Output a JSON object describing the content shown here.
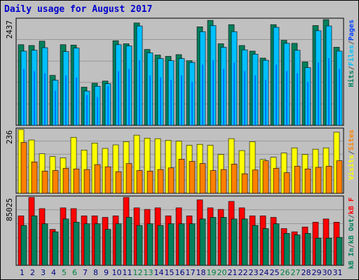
{
  "title": "Daily usage for August 2017",
  "colors": {
    "hits": "#00805c",
    "files": "#00c0ff",
    "pages": "#0040ff",
    "visits": "#ffff00",
    "sites": "#ff8000",
    "kb_in": "#00805c",
    "kb_out": "#00805c",
    "kb_f": "#ff0000",
    "weekend_label": "#008040",
    "weekday_label": "#000080",
    "panel_bg": "#c0c0c0",
    "grid": "#808080"
  },
  "chart_data": {
    "type": "bar",
    "categories": [
      "1",
      "2",
      "3",
      "4",
      "5",
      "6",
      "7",
      "8",
      "9",
      "10",
      "11",
      "12",
      "13",
      "14",
      "15",
      "16",
      "17",
      "18",
      "19",
      "20",
      "21",
      "22",
      "23",
      "24",
      "25",
      "26",
      "27",
      "28",
      "29",
      "30",
      "31"
    ],
    "weekend_days": [
      "5",
      "6",
      "12",
      "13",
      "19",
      "20",
      "26",
      "27"
    ],
    "panels": [
      {
        "name": "requests",
        "axis_max_label": "2437",
        "ylim": [
          0,
          2437
        ],
        "legend": [
          "Pages",
          "/",
          "Files",
          "/",
          "Hits"
        ],
        "series": [
          {
            "name": "Hits",
            "values": [
              1860,
              1840,
              1940,
              1150,
              1860,
              1850,
              880,
              970,
              1020,
              1950,
              1880,
              2360,
              1750,
              1620,
              1590,
              1630,
              1490,
              2270,
              2420,
              1880,
              2320,
              1840,
              1710,
              1550,
              2320,
              1960,
              1890,
              1460,
              2300,
              2437,
              1800
            ]
          },
          {
            "name": "Files",
            "values": [
              1710,
              1730,
              1790,
              1040,
              1700,
              1780,
              790,
              900,
              960,
              1860,
              1830,
              2290,
              1670,
              1540,
              1490,
              1540,
              1450,
              2160,
              2300,
              1800,
              2160,
              1740,
              1640,
              1500,
              2260,
              1890,
              1730,
              1330,
              2180,
              2290,
              1710
            ]
          },
          {
            "name": "Pages",
            "values": [
              1300,
              1250,
              1200,
              800,
              1150,
              1100,
              700,
              650,
              900,
              1250,
              1300,
              1500,
              1150,
              1100,
              1050,
              1150,
              1000,
              1400,
              1500,
              1300,
              1450,
              1250,
              1150,
              1050,
              1400,
              1250,
              1200,
              1000,
              1450,
              1550,
              1300
            ]
          }
        ]
      },
      {
        "name": "visits_sites",
        "axis_max_label": "236",
        "ylim": [
          0,
          236
        ],
        "legend": [
          "Sites",
          "/",
          "Visits"
        ],
        "series": [
          {
            "name": "Visits",
            "values": [
              236,
              197,
              146,
              136,
              131,
              207,
              160,
              186,
              166,
              179,
              191,
              215,
              204,
              202,
              196,
              193,
              178,
              181,
              178,
              144,
              202,
              158,
              191,
              125,
              133,
              149,
              168,
              144,
              163,
              168,
              226
            ]
          },
          {
            "name": "Sites",
            "values": [
              188,
              116,
              82,
              84,
              92,
              90,
              88,
              106,
              98,
              80,
              110,
              84,
              82,
              88,
              94,
              126,
              118,
              110,
              84,
              88,
              108,
              72,
              86,
              120,
              92,
              76,
              100,
              90,
              96,
              100,
              120
            ]
          }
        ]
      },
      {
        "name": "kbytes",
        "axis_max_label": "85025",
        "ylim": [
          0,
          85025
        ],
        "legend": [
          "kB F",
          "/",
          "kB Out",
          "/",
          "kB In"
        ],
        "series": [
          {
            "name": "kB F",
            "values": [
              62000,
              85025,
              71000,
              45000,
              72000,
              71000,
              62000,
              62000,
              60000,
              62000,
              85025,
              72000,
              70000,
              72000,
              62000,
              72000,
              62000,
              82000,
              72000,
              70000,
              80000,
              72000,
              62000,
              62000,
              60000,
              46000,
              42000,
              48000,
              54000,
              58000,
              54000
            ]
          },
          {
            "name": "kB Out",
            "values": [
              50000,
              62000,
              52000,
              42000,
              58000,
              54000,
              52000,
              52000,
              45000,
              52000,
              60000,
              50000,
              52000,
              50000,
              52000,
              52000,
              52000,
              58000,
              60000,
              60000,
              58000,
              58000,
              50000,
              46000,
              52000,
              40000,
              38000,
              40000,
              34000,
              34000,
              35000
            ]
          }
        ]
      }
    ]
  }
}
